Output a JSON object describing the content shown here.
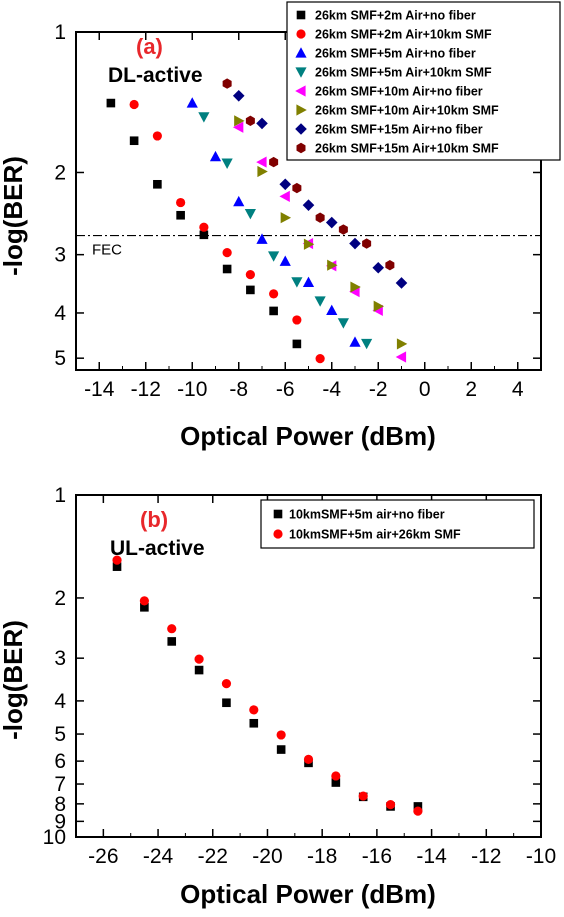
{
  "chart_data": [
    {
      "type": "scatter",
      "panel_label": "(a)",
      "annotation": "DL-active",
      "xlabel": "Optical Power (dBm)",
      "ylabel": "-log(BER)",
      "xlim": [
        -15,
        5
      ],
      "ylim": [
        1,
        5.3
      ],
      "y_scale": "log",
      "x_ticks": [
        -14,
        -12,
        -10,
        -8,
        -6,
        -4,
        -2,
        0,
        2,
        4
      ],
      "y_ticks": [
        1,
        2,
        3,
        4,
        5
      ],
      "reference_line": {
        "label": "FEC",
        "y": 2.73,
        "style": "dash-dot"
      },
      "legend_position": "top-right",
      "series": [
        {
          "name": "26km SMF+2m Air+no fiber",
          "marker": "square",
          "color": "#000000",
          "x": [
            -13.5,
            -12.5,
            -11.5,
            -10.5,
            -9.5,
            -8.5,
            -7.5,
            -6.5,
            -5.5
          ],
          "y": [
            1.42,
            1.71,
            2.12,
            2.47,
            2.72,
            3.22,
            3.57,
            3.96,
            4.66
          ]
        },
        {
          "name": "26km SMF+2m Air+10km SMF",
          "marker": "circle",
          "color": "#ff0000",
          "x": [
            -12.5,
            -11.5,
            -10.5,
            -9.5,
            -8.5,
            -7.5,
            -6.5,
            -5.5,
            -4.5
          ],
          "y": [
            1.43,
            1.67,
            2.32,
            2.62,
            2.97,
            3.31,
            3.64,
            4.14,
            5.01
          ]
        },
        {
          "name": "26km SMF+5m Air+no fiber",
          "marker": "triangle-up",
          "color": "#0000ff",
          "x": [
            -10,
            -9,
            -8,
            -7,
            -6,
            -5,
            -4,
            -3
          ],
          "y": [
            1.42,
            1.85,
            2.31,
            2.78,
            3.1,
            3.44,
            3.95,
            4.62
          ]
        },
        {
          "name": "26km SMF+5m Air+10km SMF",
          "marker": "triangle-down",
          "color": "#008080",
          "x": [
            -9.5,
            -8.5,
            -7.5,
            -6.5,
            -5.5,
            -4.5,
            -3.5,
            -2.5
          ],
          "y": [
            1.52,
            1.91,
            2.45,
            3.02,
            3.43,
            3.77,
            4.2,
            4.65
          ]
        },
        {
          "name": "26km SMF+10m Air+no fiber",
          "marker": "triangle-left",
          "color": "#ff00ff",
          "x": [
            -8,
            -7,
            -6,
            -5,
            -4,
            -3,
            -2,
            -1
          ],
          "y": [
            1.6,
            1.9,
            2.25,
            2.84,
            3.17,
            3.6,
            3.95,
            4.97
          ]
        },
        {
          "name": "26km SMF+10m Air+10km SMF",
          "marker": "triangle-right",
          "color": "#808000",
          "x": [
            -8,
            -7,
            -6,
            -5,
            -4,
            -3,
            -2,
            -1
          ],
          "y": [
            1.55,
            1.99,
            2.5,
            2.85,
            3.16,
            3.52,
            3.87,
            4.66
          ]
        },
        {
          "name": "26km SMF+15m Air+no fiber",
          "marker": "diamond",
          "color": "#000080",
          "x": [
            -8,
            -7,
            -6,
            -5,
            -4,
            -3,
            -2,
            -1
          ],
          "y": [
            1.37,
            1.57,
            2.12,
            2.35,
            2.56,
            2.84,
            3.2,
            3.45
          ]
        },
        {
          "name": "26km SMF+15m Air+10km SMF",
          "marker": "hexagon",
          "color": "#800000",
          "x": [
            -8.5,
            -7.5,
            -6.5,
            -5.5,
            -4.5,
            -3.5,
            -2.5,
            -1.5
          ],
          "y": [
            1.29,
            1.55,
            1.9,
            2.16,
            2.5,
            2.65,
            2.84,
            3.16
          ]
        }
      ]
    },
    {
      "type": "scatter",
      "panel_label": "(b)",
      "annotation": "UL-active",
      "xlabel": "Optical Power (dBm)",
      "ylabel": "-log(BER)",
      "xlim": [
        -27,
        -10
      ],
      "ylim": [
        1,
        10
      ],
      "y_scale": "log",
      "x_ticks": [
        -26,
        -24,
        -22,
        -20,
        -18,
        -16,
        -14,
        -12,
        -10
      ],
      "y_ticks": [
        1,
        2,
        3,
        4,
        5,
        6,
        7,
        8,
        9,
        10
      ],
      "legend_position": "top-right",
      "series": [
        {
          "name": "10kmSMF+5m air+no fiber",
          "marker": "square",
          "color": "#000000",
          "x": [
            -25.5,
            -24.5,
            -23.5,
            -22.5,
            -21.5,
            -20.5,
            -19.5,
            -18.5,
            -17.5,
            -16.5,
            -15.5,
            -14.5
          ],
          "y": [
            1.62,
            2.13,
            2.68,
            3.25,
            4.05,
            4.65,
            5.55,
            6.07,
            6.93,
            7.63,
            8.14,
            8.14
          ]
        },
        {
          "name": "10kmSMF+5m air+26km SMF",
          "marker": "circle",
          "color": "#ff0000",
          "x": [
            -25.5,
            -24.5,
            -23.5,
            -22.5,
            -21.5,
            -20.5,
            -19.5,
            -18.5,
            -17.5,
            -16.5,
            -15.5,
            -14.5
          ],
          "y": [
            1.55,
            2.04,
            2.46,
            3.02,
            3.56,
            4.25,
            5.03,
            5.93,
            6.63,
            7.59,
            8.04,
            8.4
          ]
        }
      ]
    }
  ]
}
